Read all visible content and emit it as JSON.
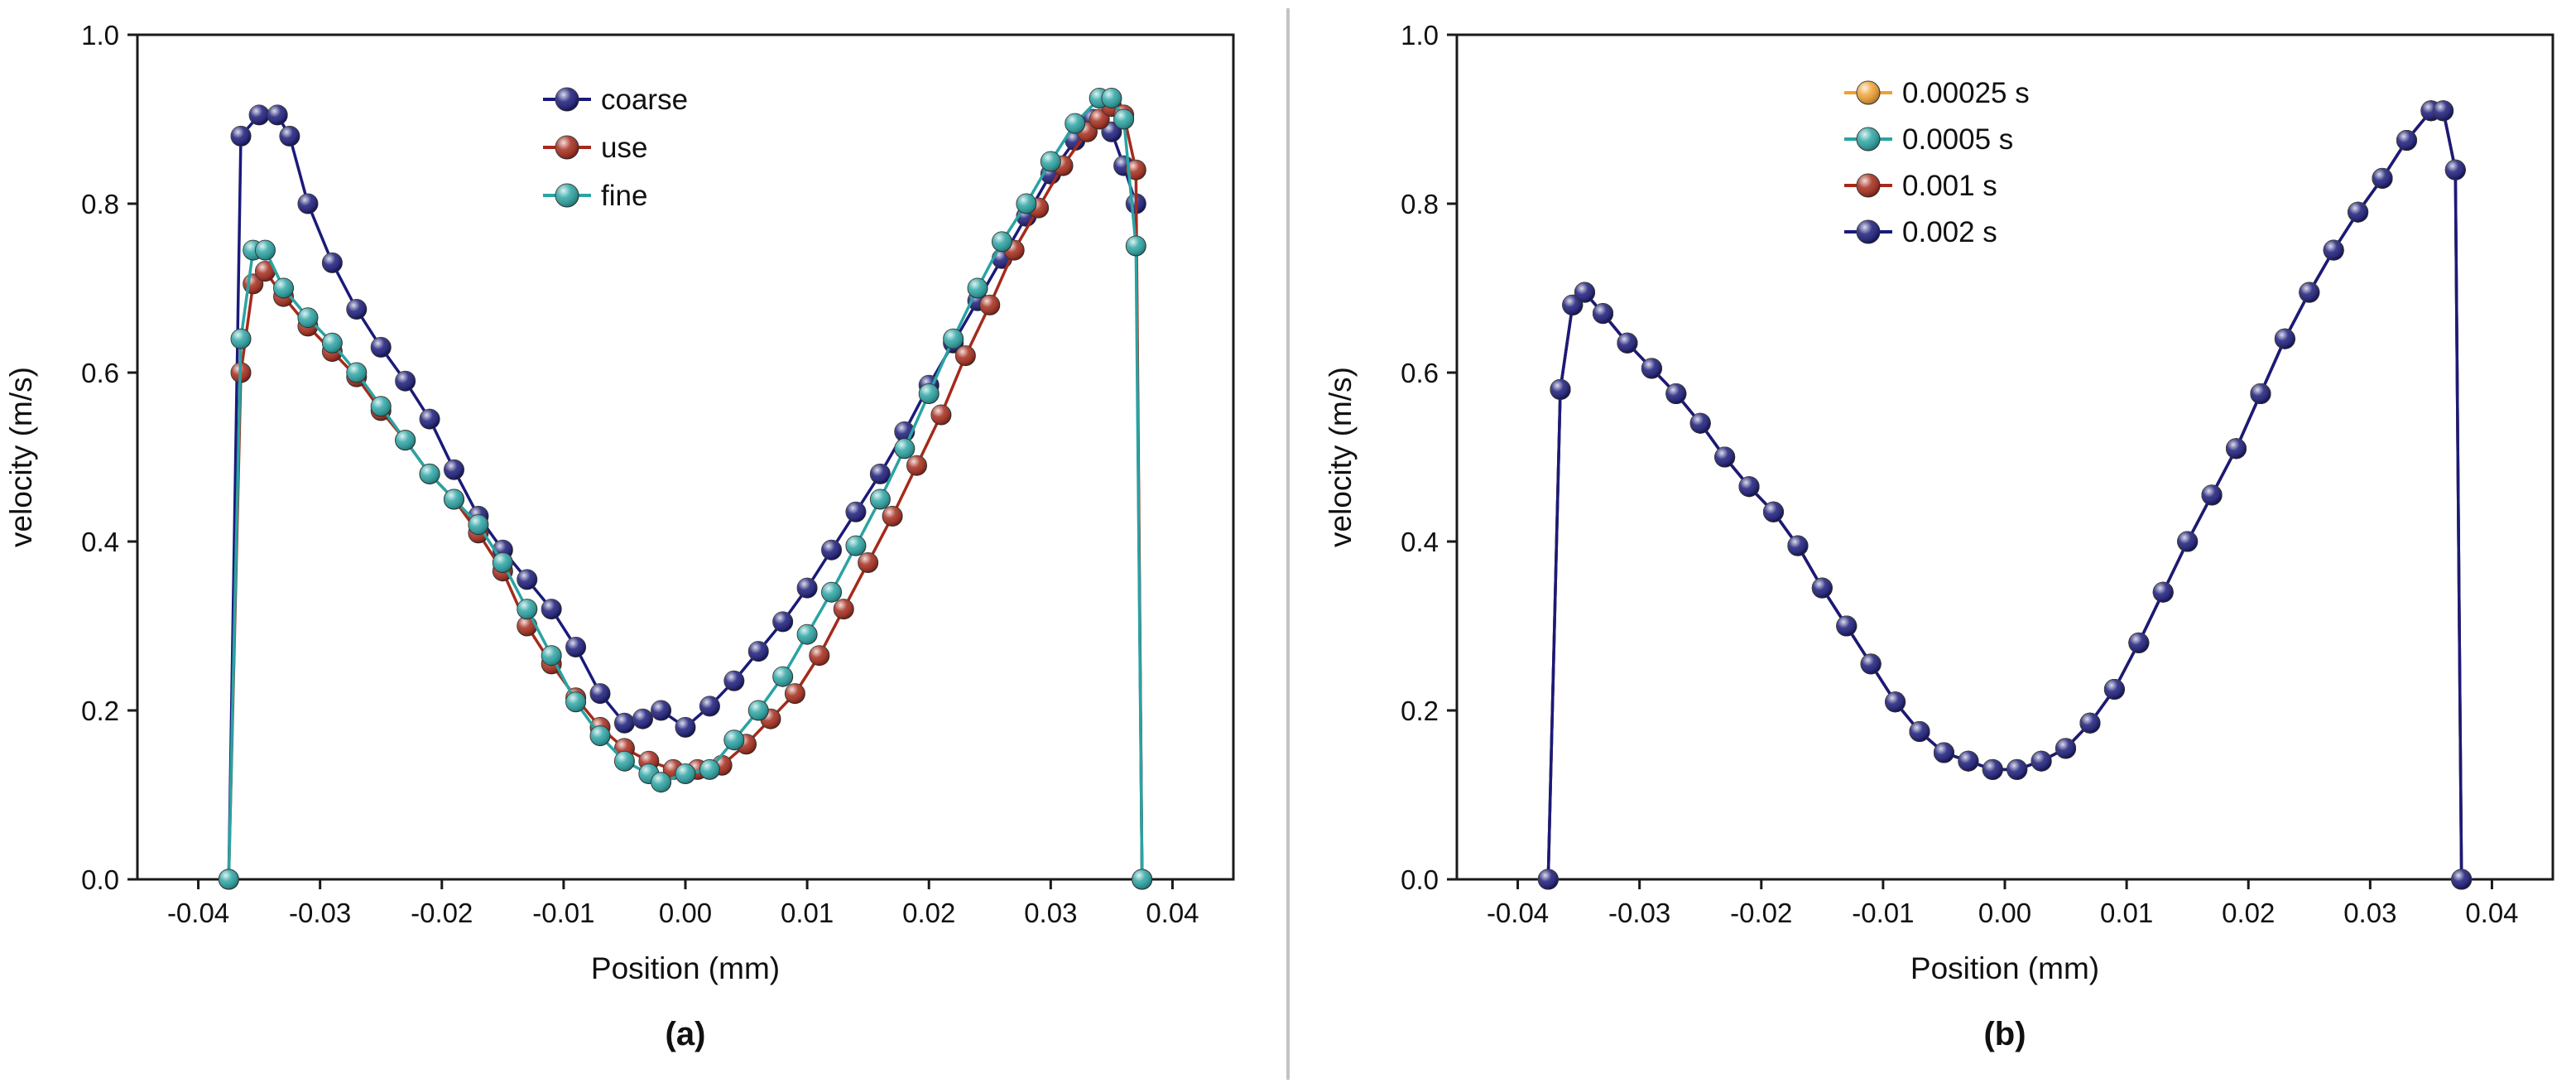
{
  "chart_data": [
    {
      "type": "line",
      "panel_label": "(a)",
      "xlabel": "Position (mm)",
      "ylabel": "velocity (m/s)",
      "xlim": [
        -0.045,
        0.045
      ],
      "ylim": [
        0.0,
        1.0
      ],
      "xticks": [
        -0.04,
        -0.03,
        -0.02,
        -0.01,
        0.0,
        0.01,
        0.02,
        0.03,
        0.04
      ],
      "xtick_labels": [
        "-0.04",
        "-0.03",
        "-0.02",
        "-0.01",
        "0.00",
        "0.01",
        "0.02",
        "0.03",
        "0.04"
      ],
      "yticks": [
        0.0,
        0.2,
        0.4,
        0.6,
        0.8,
        1.0
      ],
      "ytick_labels": [
        "0.0",
        "0.2",
        "0.4",
        "0.6",
        "0.8",
        "1.0"
      ],
      "legend_position": "top-center",
      "series": [
        {
          "name": "coarse",
          "color": "#1a1a7a",
          "x": [
            -0.0375,
            -0.0365,
            -0.035,
            -0.0335,
            -0.0325,
            -0.031,
            -0.029,
            -0.027,
            -0.025,
            -0.023,
            -0.021,
            -0.019,
            -0.017,
            -0.015,
            -0.013,
            -0.011,
            -0.009,
            -0.007,
            -0.005,
            -0.0035,
            -0.002,
            0.0,
            0.002,
            0.004,
            0.006,
            0.008,
            0.01,
            0.012,
            0.014,
            0.016,
            0.018,
            0.02,
            0.022,
            0.024,
            0.026,
            0.028,
            0.03,
            0.032,
            0.0335,
            0.035,
            0.036,
            0.037,
            0.0375
          ],
          "y": [
            0.0,
            0.88,
            0.905,
            0.905,
            0.88,
            0.8,
            0.73,
            0.675,
            0.63,
            0.59,
            0.545,
            0.485,
            0.43,
            0.39,
            0.355,
            0.32,
            0.275,
            0.22,
            0.185,
            0.19,
            0.2,
            0.18,
            0.205,
            0.235,
            0.27,
            0.305,
            0.345,
            0.39,
            0.435,
            0.48,
            0.53,
            0.585,
            0.635,
            0.685,
            0.735,
            0.785,
            0.835,
            0.875,
            0.9,
            0.885,
            0.845,
            0.8,
            0.0
          ]
        },
        {
          "name": "use",
          "color": "#a52a1a",
          "x": [
            -0.0375,
            -0.0365,
            -0.0355,
            -0.0345,
            -0.033,
            -0.031,
            -0.029,
            -0.027,
            -0.025,
            -0.023,
            -0.021,
            -0.019,
            -0.017,
            -0.015,
            -0.013,
            -0.011,
            -0.009,
            -0.007,
            -0.005,
            -0.003,
            -0.001,
            0.001,
            0.003,
            0.005,
            0.007,
            0.009,
            0.011,
            0.013,
            0.015,
            0.017,
            0.019,
            0.021,
            0.023,
            0.025,
            0.027,
            0.029,
            0.031,
            0.033,
            0.034,
            0.035,
            0.036,
            0.037,
            0.0375
          ],
          "y": [
            0.0,
            0.6,
            0.705,
            0.72,
            0.69,
            0.655,
            0.625,
            0.595,
            0.555,
            0.52,
            0.48,
            0.45,
            0.41,
            0.365,
            0.3,
            0.255,
            0.215,
            0.18,
            0.155,
            0.14,
            0.13,
            0.13,
            0.135,
            0.16,
            0.19,
            0.22,
            0.265,
            0.32,
            0.375,
            0.43,
            0.49,
            0.55,
            0.62,
            0.68,
            0.745,
            0.795,
            0.845,
            0.885,
            0.9,
            0.915,
            0.905,
            0.84,
            0.0
          ]
        },
        {
          "name": "fine",
          "color": "#2aa3a3",
          "x": [
            -0.0375,
            -0.0365,
            -0.0355,
            -0.0345,
            -0.033,
            -0.031,
            -0.029,
            -0.027,
            -0.025,
            -0.023,
            -0.021,
            -0.019,
            -0.017,
            -0.015,
            -0.013,
            -0.011,
            -0.009,
            -0.007,
            -0.005,
            -0.003,
            -0.002,
            0.0,
            0.002,
            0.004,
            0.006,
            0.008,
            0.01,
            0.012,
            0.014,
            0.016,
            0.018,
            0.02,
            0.022,
            0.024,
            0.026,
            0.028,
            0.03,
            0.032,
            0.034,
            0.035,
            0.036,
            0.037,
            0.0375
          ],
          "y": [
            0.0,
            0.64,
            0.745,
            0.745,
            0.7,
            0.665,
            0.635,
            0.6,
            0.56,
            0.52,
            0.48,
            0.45,
            0.42,
            0.375,
            0.32,
            0.265,
            0.21,
            0.17,
            0.14,
            0.125,
            0.115,
            0.125,
            0.13,
            0.165,
            0.2,
            0.24,
            0.29,
            0.34,
            0.395,
            0.45,
            0.51,
            0.575,
            0.64,
            0.7,
            0.755,
            0.8,
            0.85,
            0.895,
            0.925,
            0.925,
            0.9,
            0.75,
            0.0
          ]
        }
      ]
    },
    {
      "type": "line",
      "panel_label": "(b)",
      "xlabel": "Position (mm)",
      "ylabel": "velocity (m/s)",
      "xlim": [
        -0.045,
        0.045
      ],
      "ylim": [
        0.0,
        1.0
      ],
      "xticks": [
        -0.04,
        -0.03,
        -0.02,
        -0.01,
        0.0,
        0.01,
        0.02,
        0.03,
        0.04
      ],
      "xtick_labels": [
        "-0.04",
        "-0.03",
        "-0.02",
        "-0.01",
        "0.00",
        "0.01",
        "0.02",
        "0.03",
        "0.04"
      ],
      "yticks": [
        0.0,
        0.2,
        0.4,
        0.6,
        0.8,
        1.0
      ],
      "ytick_labels": [
        "0.0",
        "0.2",
        "0.4",
        "0.6",
        "0.8",
        "1.0"
      ],
      "legend_position": "top-center",
      "series": [
        {
          "name": "0.00025 s",
          "color": "#f0a030",
          "x": [
            -0.0375,
            -0.0365,
            -0.0355,
            -0.0345,
            -0.033,
            -0.031,
            -0.029,
            -0.027,
            -0.025,
            -0.023,
            -0.021,
            -0.019,
            -0.017,
            -0.015,
            -0.013,
            -0.011,
            -0.009,
            -0.007,
            -0.005,
            -0.003,
            -0.001,
            0.001,
            0.003,
            0.005,
            0.007,
            0.009,
            0.011,
            0.013,
            0.015,
            0.017,
            0.019,
            0.021,
            0.023,
            0.025,
            0.027,
            0.029,
            0.031,
            0.033,
            0.035,
            0.036,
            0.037,
            0.0375
          ],
          "y": [
            0.0,
            0.58,
            0.68,
            0.695,
            0.67,
            0.635,
            0.605,
            0.575,
            0.54,
            0.5,
            0.465,
            0.435,
            0.395,
            0.345,
            0.3,
            0.255,
            0.21,
            0.175,
            0.15,
            0.14,
            0.13,
            0.13,
            0.14,
            0.155,
            0.185,
            0.225,
            0.28,
            0.34,
            0.4,
            0.455,
            0.51,
            0.575,
            0.64,
            0.695,
            0.745,
            0.79,
            0.83,
            0.875,
            0.91,
            0.91,
            0.84,
            0.0
          ]
        },
        {
          "name": "0.0005 s",
          "color": "#2aa3a3",
          "x": [
            -0.0375,
            -0.0365,
            -0.0355,
            -0.0345,
            -0.033,
            -0.031,
            -0.029,
            -0.027,
            -0.025,
            -0.023,
            -0.021,
            -0.019,
            -0.017,
            -0.015,
            -0.013,
            -0.011,
            -0.009,
            -0.007,
            -0.005,
            -0.003,
            -0.001,
            0.001,
            0.003,
            0.005,
            0.007,
            0.009,
            0.011,
            0.013,
            0.015,
            0.017,
            0.019,
            0.021,
            0.023,
            0.025,
            0.027,
            0.029,
            0.031,
            0.033,
            0.035,
            0.036,
            0.037,
            0.0375
          ],
          "y": [
            0.0,
            0.58,
            0.68,
            0.695,
            0.67,
            0.635,
            0.605,
            0.575,
            0.54,
            0.5,
            0.465,
            0.435,
            0.395,
            0.345,
            0.3,
            0.255,
            0.21,
            0.175,
            0.15,
            0.14,
            0.13,
            0.13,
            0.14,
            0.155,
            0.185,
            0.225,
            0.28,
            0.34,
            0.4,
            0.455,
            0.51,
            0.575,
            0.64,
            0.695,
            0.745,
            0.79,
            0.83,
            0.875,
            0.91,
            0.91,
            0.84,
            0.0
          ]
        },
        {
          "name": "0.001 s",
          "color": "#a52a1a",
          "x": [
            -0.0375,
            -0.0365,
            -0.0355,
            -0.0345,
            -0.033,
            -0.031,
            -0.029,
            -0.027,
            -0.025,
            -0.023,
            -0.021,
            -0.019,
            -0.017,
            -0.015,
            -0.013,
            -0.011,
            -0.009,
            -0.007,
            -0.005,
            -0.003,
            -0.001,
            0.001,
            0.003,
            0.005,
            0.007,
            0.009,
            0.011,
            0.013,
            0.015,
            0.017,
            0.019,
            0.021,
            0.023,
            0.025,
            0.027,
            0.029,
            0.031,
            0.033,
            0.035,
            0.036,
            0.037,
            0.0375
          ],
          "y": [
            0.0,
            0.58,
            0.68,
            0.695,
            0.67,
            0.635,
            0.605,
            0.575,
            0.54,
            0.5,
            0.465,
            0.435,
            0.395,
            0.345,
            0.3,
            0.255,
            0.21,
            0.175,
            0.15,
            0.14,
            0.13,
            0.13,
            0.14,
            0.155,
            0.185,
            0.225,
            0.28,
            0.34,
            0.4,
            0.455,
            0.51,
            0.575,
            0.64,
            0.695,
            0.745,
            0.79,
            0.83,
            0.875,
            0.91,
            0.91,
            0.84,
            0.0
          ]
        },
        {
          "name": "0.002 s",
          "color": "#1a1a7a",
          "x": [
            -0.0375,
            -0.0365,
            -0.0355,
            -0.0345,
            -0.033,
            -0.031,
            -0.029,
            -0.027,
            -0.025,
            -0.023,
            -0.021,
            -0.019,
            -0.017,
            -0.015,
            -0.013,
            -0.011,
            -0.009,
            -0.007,
            -0.005,
            -0.003,
            -0.001,
            0.001,
            0.003,
            0.005,
            0.007,
            0.009,
            0.011,
            0.013,
            0.015,
            0.017,
            0.019,
            0.021,
            0.023,
            0.025,
            0.027,
            0.029,
            0.031,
            0.033,
            0.035,
            0.036,
            0.037,
            0.0375
          ],
          "y": [
            0.0,
            0.58,
            0.68,
            0.695,
            0.67,
            0.635,
            0.605,
            0.575,
            0.54,
            0.5,
            0.465,
            0.435,
            0.395,
            0.345,
            0.3,
            0.255,
            0.21,
            0.175,
            0.15,
            0.14,
            0.13,
            0.13,
            0.14,
            0.155,
            0.185,
            0.225,
            0.28,
            0.34,
            0.4,
            0.455,
            0.51,
            0.575,
            0.64,
            0.695,
            0.745,
            0.79,
            0.83,
            0.875,
            0.91,
            0.91,
            0.84,
            0.0
          ]
        }
      ]
    }
  ]
}
